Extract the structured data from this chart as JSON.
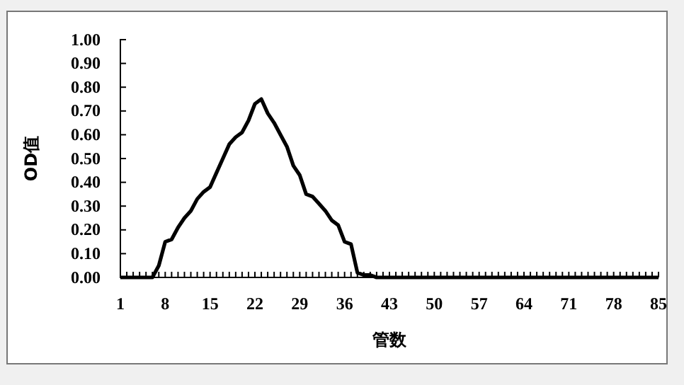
{
  "chart_data": {
    "type": "line",
    "xlabel": "管数",
    "ylabel": "OD值",
    "categories": [
      "1",
      null,
      null,
      null,
      null,
      null,
      null,
      "8",
      null,
      null,
      null,
      null,
      null,
      null,
      "15",
      null,
      null,
      null,
      null,
      null,
      null,
      "22",
      null,
      null,
      null,
      null,
      null,
      null,
      "29",
      null,
      null,
      null,
      null,
      null,
      null,
      "36",
      null,
      null,
      null,
      null,
      null,
      null,
      "43",
      null,
      null,
      null,
      null,
      null,
      null,
      "50",
      null,
      null,
      null,
      null,
      null,
      null,
      "57",
      null,
      null,
      null,
      null,
      null,
      null,
      "64",
      null,
      null,
      null,
      null,
      null,
      null,
      "71",
      null,
      null,
      null,
      null,
      null,
      null,
      "78",
      null,
      null,
      null,
      null,
      null,
      null,
      "85"
    ],
    "series": [
      {
        "color": "#000000",
        "values": [
          0,
          0,
          0,
          0,
          0,
          0,
          0.05,
          0.15,
          0.16,
          0.21,
          0.25,
          0.28,
          0.33,
          0.36,
          0.38,
          0.44,
          0.5,
          0.56,
          0.59,
          0.61,
          0.66,
          0.73,
          0.75,
          0.69,
          0.65,
          0.6,
          0.55,
          0.47,
          0.43,
          0.35,
          0.34,
          0.31,
          0.28,
          0.24,
          0.22,
          0.15,
          0.14,
          0.02,
          0.01,
          0.01,
          0,
          0,
          0,
          0,
          0,
          0,
          0,
          0,
          0,
          0,
          0,
          0,
          0,
          0,
          0,
          0,
          0,
          0,
          0,
          0,
          0,
          0,
          0,
          0,
          0,
          0,
          0,
          0,
          0,
          0,
          0,
          0,
          0,
          0,
          0,
          0,
          0,
          0,
          0,
          0,
          0,
          0,
          0,
          0,
          0
        ]
      }
    ],
    "ylim": [
      0,
      1
    ],
    "yticks": [
      {
        "value": 0,
        "label": "0.00"
      },
      {
        "value": 0.1,
        "label": "0.10"
      },
      {
        "value": 0.2,
        "label": "0.20"
      },
      {
        "value": 0.3,
        "label": "0.30"
      },
      {
        "value": 0.4,
        "label": "0.40"
      },
      {
        "value": 0.5,
        "label": "0.50"
      },
      {
        "value": 0.6,
        "label": "0.60"
      },
      {
        "value": 0.7,
        "label": "0.70"
      },
      {
        "value": 0.8,
        "label": "0.80"
      },
      {
        "value": 0.9,
        "label": "0.90"
      },
      {
        "value": 1,
        "label": "1.00"
      }
    ],
    "grid": false,
    "legend": false,
    "marker": "none",
    "line_style": "solid"
  }
}
